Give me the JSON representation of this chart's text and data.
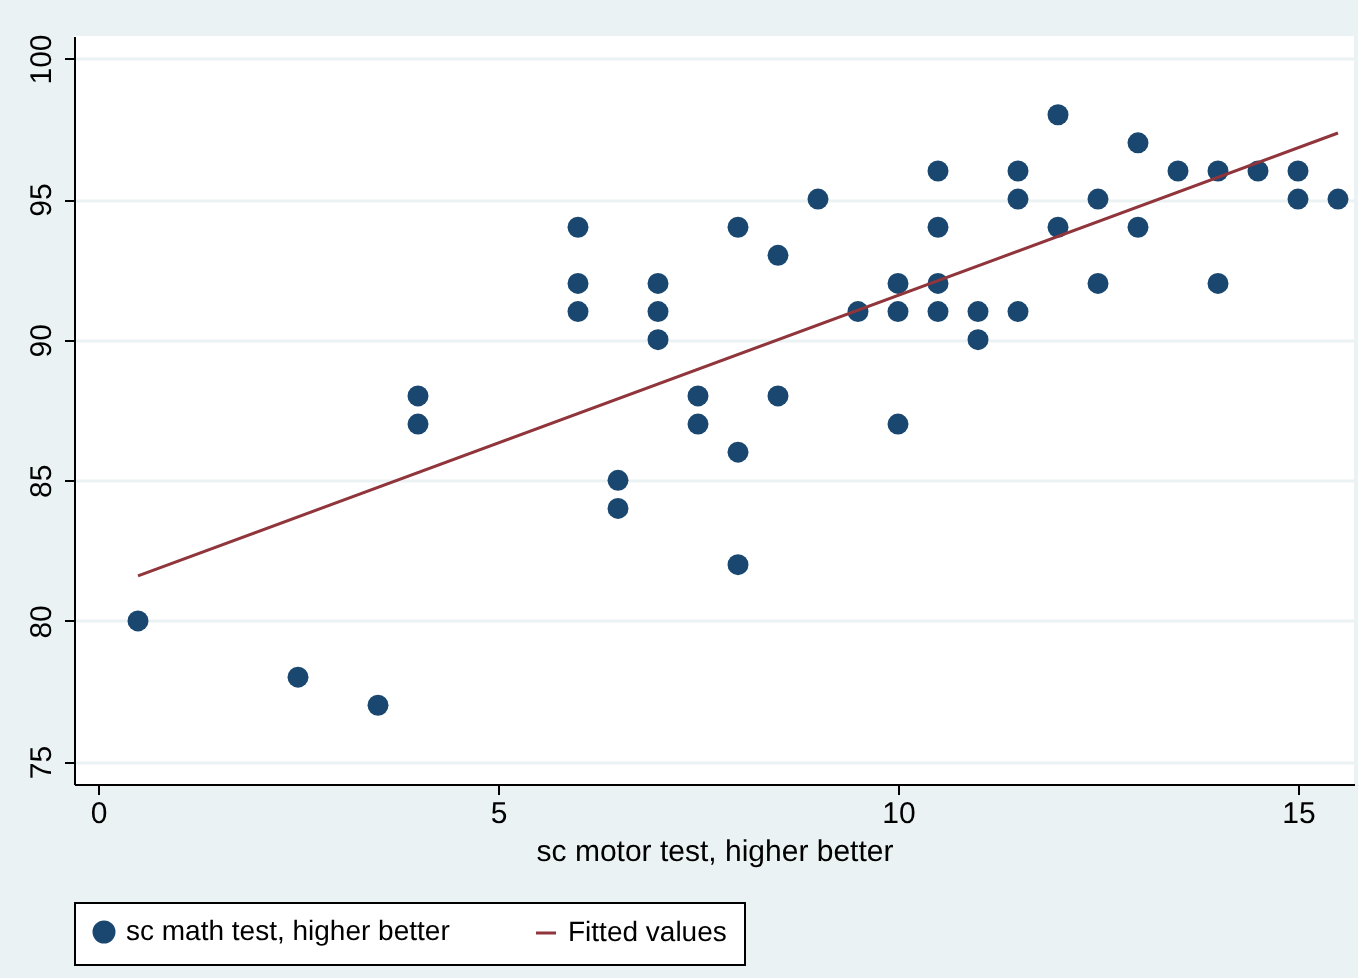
{
  "chart_data": {
    "type": "scatter",
    "xlabel": "sc motor test, higher better",
    "xlim": [
      -0.3,
      15.7
    ],
    "xticks": [
      0,
      5,
      10,
      15
    ],
    "ylim": [
      74.2,
      100.8
    ],
    "yticks": [
      75,
      80,
      85,
      90,
      95,
      100
    ],
    "grid": "y",
    "legend": "bottom",
    "series": [
      {
        "name": "sc math test, higher better",
        "marker": "circle",
        "color": "#1a476f",
        "x": [
          0.5,
          2.5,
          3.5,
          4,
          4,
          6,
          6,
          6,
          6.5,
          6.5,
          7,
          7,
          7,
          7.5,
          7.5,
          8,
          8,
          8,
          8.5,
          8.5,
          9,
          9.5,
          10,
          10,
          10,
          10.5,
          10.5,
          10.5,
          10.5,
          11,
          11,
          11.5,
          11.5,
          11.5,
          12,
          12,
          12.5,
          12.5,
          13,
          13,
          13.5,
          14,
          14,
          14.5,
          15,
          15,
          15.5
        ],
        "values": [
          80,
          78,
          77,
          88,
          87,
          94,
          92,
          91,
          85,
          84,
          92,
          91,
          90,
          88,
          87,
          94,
          86,
          82,
          93,
          88,
          95,
          91,
          92,
          91,
          87,
          96,
          94,
          92,
          91,
          91,
          90,
          96,
          95,
          91,
          98,
          94,
          95,
          92,
          97,
          94,
          96,
          96,
          92,
          96,
          96,
          95,
          95
        ]
      },
      {
        "name": "Fitted values",
        "type": "line",
        "color": "#90353b",
        "line_style": "solid",
        "x": [
          0.5,
          15.5
        ],
        "values": [
          81.6,
          97.35
        ]
      }
    ]
  }
}
